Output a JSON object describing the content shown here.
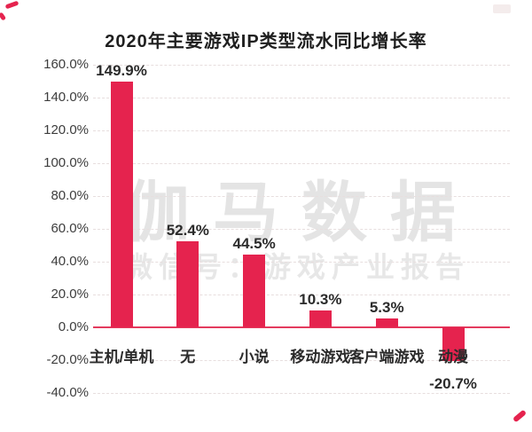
{
  "page": {
    "title": "2020年主要游戏IP类型流水同比增长率"
  },
  "watermark": {
    "line1": "伽马数据",
    "line2": "微信号：游戏产业报告"
  },
  "colors": {
    "bar": "#e5234e",
    "zero_line": "#e43b5e",
    "grid": "#e7dede",
    "corner_mark": "#e5234e"
  },
  "chart_data": {
    "type": "bar",
    "title": "2020年主要游戏IP类型流水同比增长率",
    "categories": [
      "主机/单机",
      "无",
      "小说",
      "移动游戏",
      "客户端游戏",
      "动漫"
    ],
    "values": [
      149.9,
      52.4,
      44.5,
      10.3,
      5.3,
      -20.7
    ],
    "value_labels": [
      "149.9%",
      "52.4%",
      "44.5%",
      "10.3%",
      "5.3%",
      "-20.7%"
    ],
    "series_name": "流水同比增长率",
    "xlabel": "",
    "ylabel": "",
    "ylim": [
      -40,
      160
    ],
    "yticks": [
      {
        "value": 160,
        "label": "160.0%"
      },
      {
        "value": 140,
        "label": "140.0%"
      },
      {
        "value": 120,
        "label": "120.0%"
      },
      {
        "value": 100,
        "label": "100.0%"
      },
      {
        "value": 80,
        "label": "80.0%"
      },
      {
        "value": 60,
        "label": "60.0%"
      },
      {
        "value": 40,
        "label": "40.0%"
      },
      {
        "value": 20,
        "label": "20.0%"
      },
      {
        "value": 0,
        "label": "0.0%"
      },
      {
        "value": -20,
        "label": "-20.0%"
      },
      {
        "value": -40,
        "label": "-40.0%"
      }
    ],
    "grid": "horizontal-dashed",
    "legend": "none",
    "bar_color": "#e5234e"
  }
}
